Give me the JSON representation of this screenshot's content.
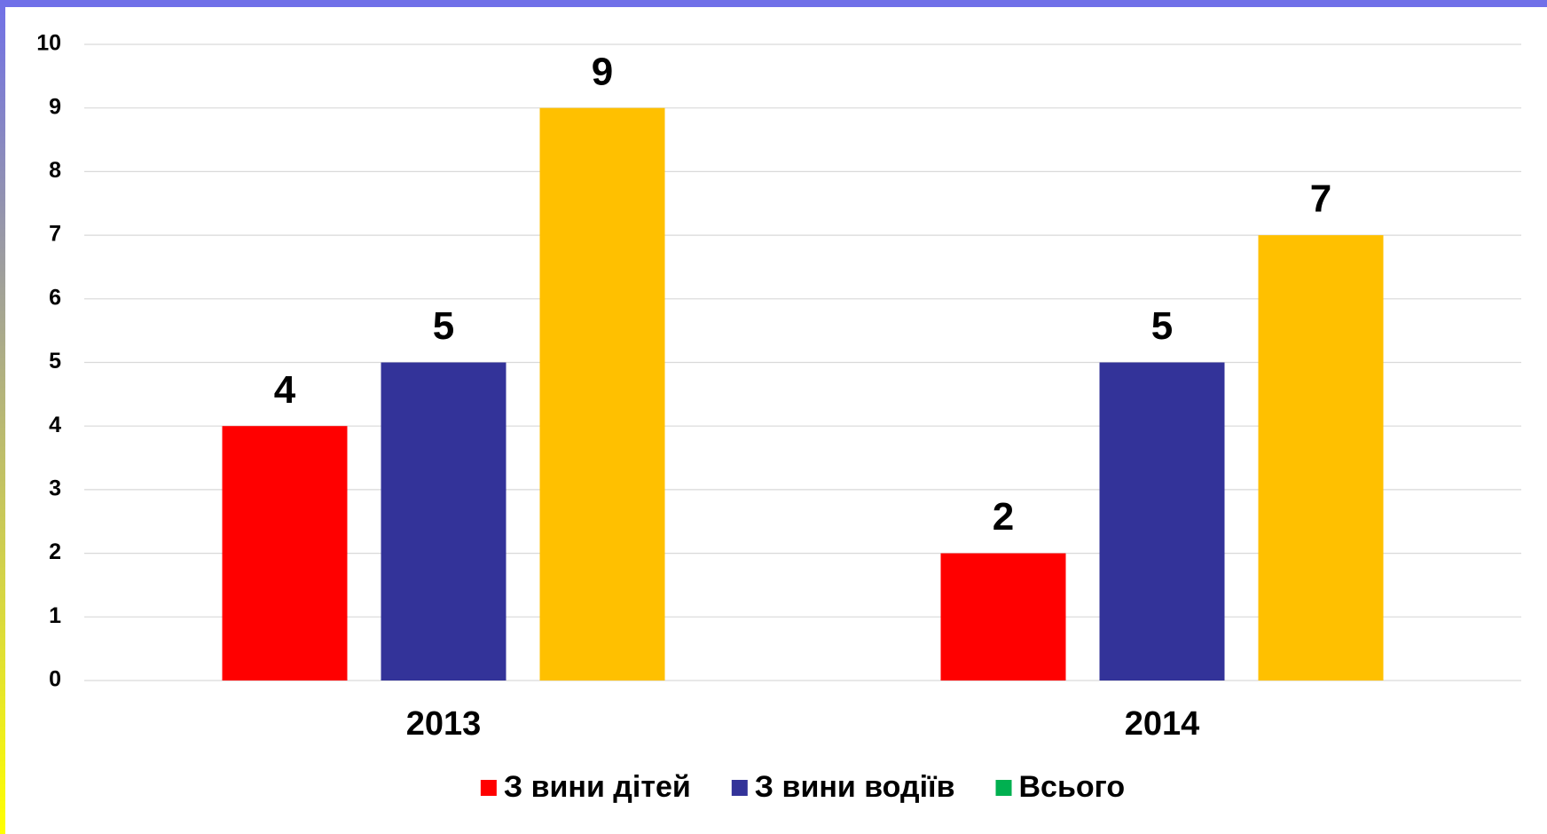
{
  "chart_data": {
    "type": "bar",
    "categories": [
      "2013",
      "2014"
    ],
    "series": [
      {
        "name": "З вини дітей",
        "color": "#ff0000",
        "values": [
          4,
          2
        ]
      },
      {
        "name": "З вини водіїв",
        "color": "#333399",
        "values": [
          5,
          5
        ]
      },
      {
        "name": "Всього",
        "color": "#ffc000",
        "legend_color": "#00b050",
        "values": [
          9,
          7
        ]
      }
    ],
    "ylim": [
      0,
      10
    ],
    "yticks": [
      0,
      1,
      2,
      3,
      4,
      5,
      6,
      7,
      8,
      9,
      10
    ],
    "grid": true,
    "legend": "bottom"
  }
}
